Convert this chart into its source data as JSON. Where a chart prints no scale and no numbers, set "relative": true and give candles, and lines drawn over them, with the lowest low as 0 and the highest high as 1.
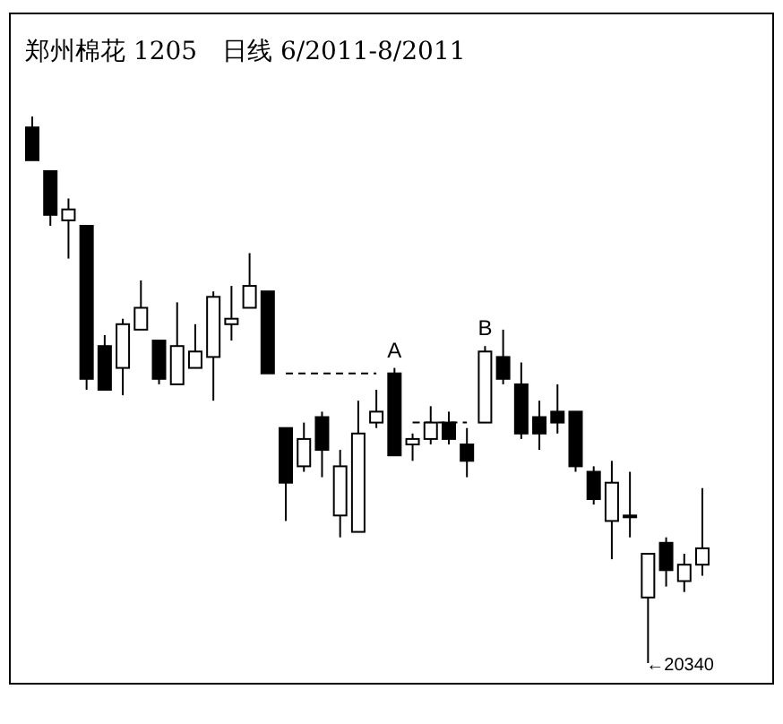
{
  "chart_data": {
    "type": "candlestick",
    "title": "郑州棉花 1205　日线 6/2011-8/2011",
    "relative": true,
    "categories": [
      null,
      null,
      null,
      null,
      null,
      null,
      null,
      null,
      null,
      null,
      null,
      null,
      null,
      null,
      null,
      null,
      null,
      null,
      null,
      null,
      null,
      null,
      null,
      null,
      null,
      null,
      null,
      null,
      null,
      null,
      null,
      null,
      null,
      null,
      null,
      null,
      null,
      null
    ],
    "ohlc": [
      [
        0.98,
        1.0,
        0.92,
        0.92
      ],
      [
        0.9,
        0.9,
        0.8,
        0.82
      ],
      [
        0.81,
        0.85,
        0.74,
        0.83
      ],
      [
        0.8,
        0.8,
        0.5,
        0.52
      ],
      [
        0.58,
        0.6,
        0.5,
        0.5
      ],
      [
        0.54,
        0.63,
        0.49,
        0.62
      ],
      [
        0.61,
        0.7,
        0.61,
        0.65
      ],
      [
        0.59,
        0.59,
        0.51,
        0.52
      ],
      [
        0.51,
        0.66,
        0.51,
        0.58
      ],
      [
        0.54,
        0.62,
        0.54,
        0.57
      ],
      [
        0.56,
        0.68,
        0.48,
        0.67
      ],
      [
        0.62,
        0.69,
        0.59,
        0.63
      ],
      [
        0.65,
        0.75,
        0.65,
        0.69
      ],
      [
        0.68,
        0.68,
        0.53,
        0.53
      ],
      [
        0.43,
        0.43,
        0.26,
        0.33
      ],
      [
        0.36,
        0.44,
        0.35,
        0.41
      ],
      [
        0.45,
        0.46,
        0.34,
        0.39
      ],
      [
        0.27,
        0.39,
        0.23,
        0.36
      ],
      [
        0.24,
        0.48,
        0.24,
        0.42
      ],
      [
        0.44,
        0.5,
        0.43,
        0.46
      ],
      [
        0.53,
        0.54,
        0.38,
        0.38
      ],
      [
        0.4,
        0.42,
        0.37,
        0.41
      ],
      [
        0.41,
        0.47,
        0.4,
        0.44
      ],
      [
        0.44,
        0.46,
        0.4,
        0.41
      ],
      [
        0.4,
        0.43,
        0.34,
        0.37
      ],
      [
        0.44,
        0.58,
        0.44,
        0.57
      ],
      [
        0.56,
        0.61,
        0.51,
        0.52
      ],
      [
        0.51,
        0.55,
        0.41,
        0.42
      ],
      [
        0.45,
        0.48,
        0.39,
        0.42
      ],
      [
        0.46,
        0.51,
        0.42,
        0.44
      ],
      [
        0.46,
        0.46,
        0.35,
        0.36
      ],
      [
        0.35,
        0.36,
        0.29,
        0.3
      ],
      [
        0.26,
        0.37,
        0.19,
        0.33
      ],
      [
        0.27,
        0.35,
        0.23,
        0.27
      ],
      [
        0.12,
        0.2,
        0.0,
        0.2
      ],
      [
        0.22,
        0.23,
        0.14,
        0.17
      ],
      [
        0.15,
        0.2,
        0.13,
        0.18
      ],
      [
        0.18,
        0.32,
        0.16,
        0.21
      ]
    ],
    "series": [
      {
        "type": "line",
        "line_style": "dashed",
        "color": "#000000",
        "values": [
          null,
          null,
          null,
          null,
          null,
          null,
          null,
          null,
          null,
          null,
          null,
          null,
          null,
          null,
          0.53,
          0.53,
          0.53,
          0.53,
          0.53,
          0.53,
          null,
          null,
          null,
          null,
          null,
          null,
          null,
          null,
          null,
          null,
          null,
          null,
          null,
          null,
          null,
          null,
          null,
          null
        ]
      },
      {
        "type": "line",
        "line_style": "dashed",
        "color": "#000000",
        "values": [
          null,
          null,
          null,
          null,
          null,
          null,
          null,
          null,
          null,
          null,
          null,
          null,
          null,
          null,
          null,
          null,
          null,
          null,
          null,
          null,
          null,
          0.44,
          0.44,
          0.44,
          0.44,
          null,
          null,
          null,
          null,
          null,
          null,
          null,
          null,
          null,
          null,
          null,
          null,
          null
        ]
      }
    ],
    "annotations": [
      {
        "text": "A",
        "y": 0.54
      },
      {
        "text": "B",
        "y": 0.58
      },
      "←20340"
    ]
  }
}
